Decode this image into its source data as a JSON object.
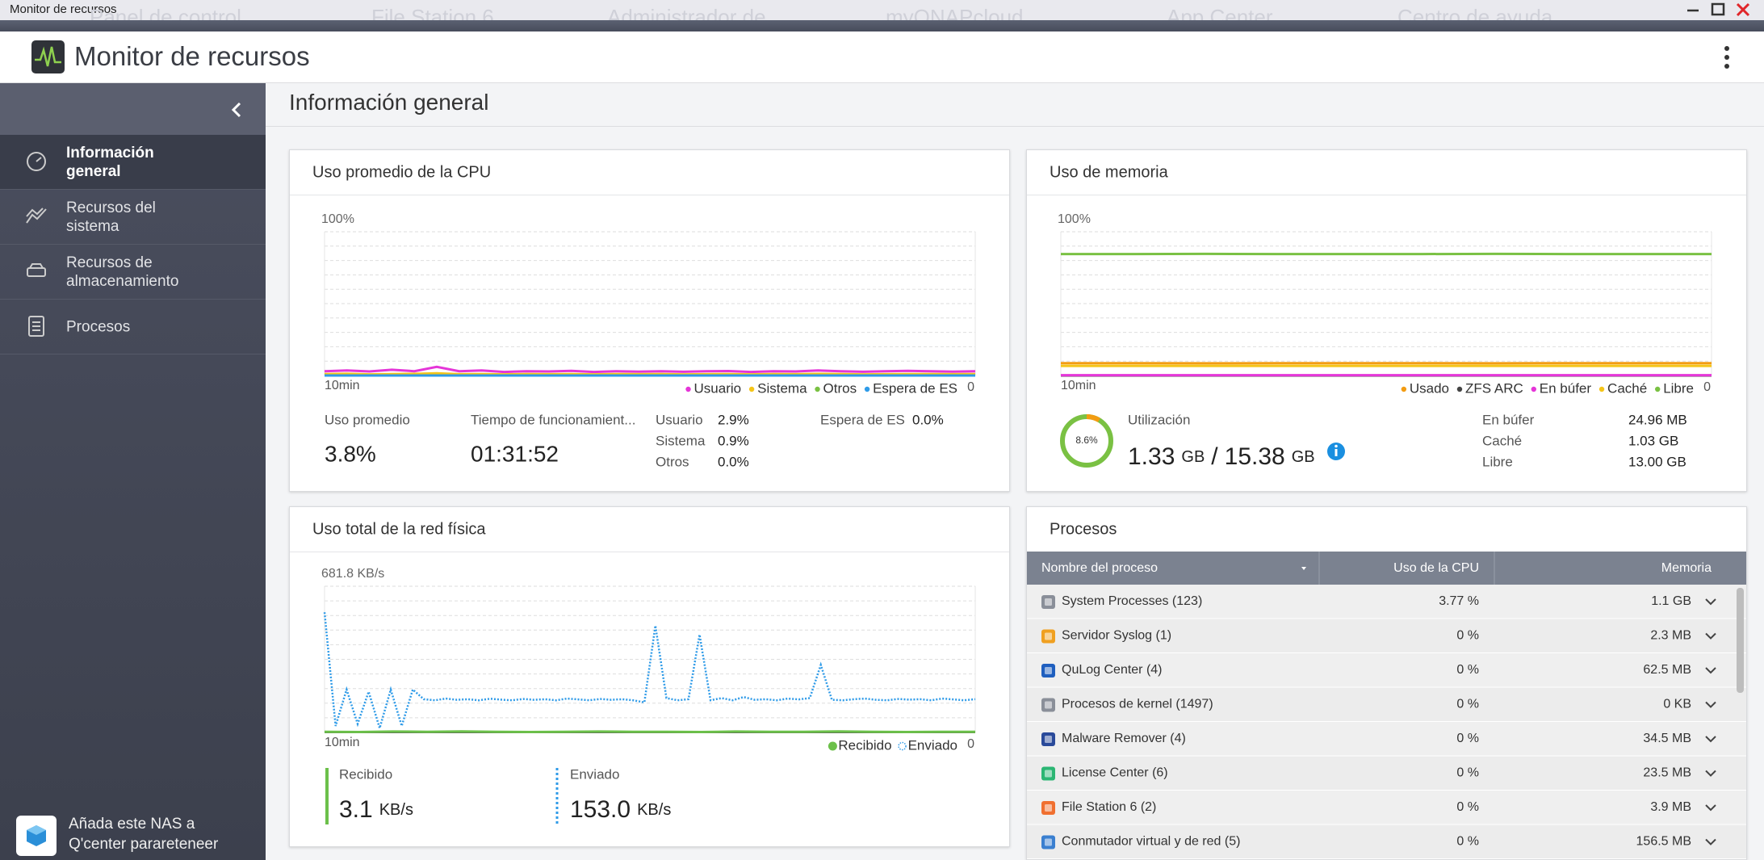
{
  "window": {
    "title": "Monitor de recursos",
    "background_tabs": [
      "Panel de control",
      "File Station 6",
      "Administrador de",
      "myQNAPcloud",
      "App Center",
      "Centro de ayuda"
    ]
  },
  "app": {
    "title": "Monitor de recursos"
  },
  "sidebar": {
    "items": [
      "Información general",
      "Recursos del sistema",
      "Recursos de almacenamiento",
      "Procesos"
    ],
    "active": 0,
    "footer": [
      "Añada este NAS a",
      "Q'center parareteneer"
    ]
  },
  "page": {
    "title": "Información general"
  },
  "cpu": {
    "title": "Uso promedio de la CPU",
    "chart": {
      "type": "line",
      "ylim": [
        0,
        100
      ],
      "yticks": [
        0,
        {
          "value": 100,
          "label": "100%"
        }
      ],
      "x_label": "10min",
      "series": [
        {
          "name": "Usuario",
          "color": "#e535d8",
          "values": [
            3,
            3.5,
            2.8,
            4,
            3,
            6,
            3,
            3.5,
            2.5,
            3,
            2.8,
            3.2,
            2.5,
            3,
            2.7,
            3,
            2.6,
            2.9,
            3.1,
            2.5,
            3,
            2.8,
            3.5,
            3,
            2.6,
            2.9,
            3.2,
            3,
            2.7,
            3
          ]
        },
        {
          "name": "Sistema",
          "color": "#f5c518",
          "values": [
            1,
            1.2,
            0.8,
            1,
            1.1,
            1.5,
            0.9,
            1,
            0.8,
            1,
            0.9,
            1,
            0.8,
            1,
            0.9,
            1,
            0.8,
            0.9,
            1,
            0.8,
            1,
            0.9,
            1.1,
            1,
            0.8,
            0.9,
            1,
            1,
            0.9,
            1
          ]
        },
        {
          "name": "Otros",
          "color": "#7ac143",
          "values": [
            0,
            0,
            0,
            0,
            0,
            0,
            0,
            0,
            0,
            0
          ]
        },
        {
          "name": "Espera de ES",
          "color": "#2f9be8",
          "values": [
            0,
            0,
            0,
            0,
            0,
            0,
            0,
            0,
            0,
            0
          ]
        }
      ]
    },
    "stats": {
      "average": {
        "label": "Uso promedio",
        "value": "3.8%"
      },
      "uptime": {
        "label": "Tiempo de funcionamient...",
        "value": "01:31:52"
      },
      "breakdown": [
        [
          "Usuario",
          "2.9%"
        ],
        [
          "Sistema",
          "0.9%"
        ],
        [
          "Otros",
          "0.0%"
        ]
      ],
      "io_wait": [
        "Espera de ES",
        "0.0%"
      ]
    }
  },
  "memory": {
    "title": "Uso de memoria",
    "chart": {
      "type": "line",
      "ylim": [
        0,
        100
      ],
      "yticks": [
        0,
        {
          "value": 100,
          "label": "100%"
        }
      ],
      "x_label": "10min",
      "series": [
        {
          "name": "Usado",
          "color": "#f39c12",
          "values": [
            8.6,
            8.6,
            8.5,
            8.6,
            8.6,
            8.6,
            8.5,
            8.6,
            8.6,
            8.6
          ]
        },
        {
          "name": "ZFS ARC",
          "color": "#444444",
          "values": [
            0,
            0,
            0,
            0,
            0,
            0,
            0,
            0,
            0,
            0
          ]
        },
        {
          "name": "En búfer",
          "color": "#e535d8",
          "values": [
            0.2,
            0.2,
            0.2,
            0.2,
            0.2,
            0.2,
            0.2,
            0.2,
            0.2,
            0.2
          ]
        },
        {
          "name": "Caché",
          "color": "#f5c518",
          "values": [
            6.7,
            6.7,
            6.7,
            6.7,
            6.7,
            6.7,
            6.7,
            6.7,
            6.7,
            6.7
          ]
        },
        {
          "name": "Libre",
          "color": "#7ac143",
          "values": [
            84.5,
            84.5,
            84.6,
            84.5,
            84.5,
            84.5,
            84.6,
            84.5,
            84.5,
            84.5
          ]
        }
      ]
    },
    "utilization": {
      "label": "Utilización",
      "ring": {
        "value": 8.6,
        "label": "8.6%"
      },
      "used": "1.33",
      "used_unit": "GB",
      "separator": "/",
      "total": "15.38",
      "total_unit": "GB"
    },
    "details": [
      [
        "En búfer",
        "24.96 MB"
      ],
      [
        "Caché",
        "1.03 GB"
      ],
      [
        "Libre",
        "13.00 GB"
      ]
    ]
  },
  "network": {
    "title": "Uso total de la red física",
    "chart": {
      "type": "line",
      "ylim": [
        0,
        681.8
      ],
      "yticks": [
        0,
        {
          "value": 681.8,
          "label": "681.8 KB/s"
        }
      ],
      "x_label": "10min",
      "series": [
        {
          "name": "Recibido",
          "color": "#6cc04a",
          "values": [
            3,
            2,
            4,
            3,
            5,
            3,
            2,
            3,
            4,
            3,
            3,
            2,
            4,
            3,
            3,
            5,
            3,
            2,
            3,
            3
          ]
        },
        {
          "name": "Enviado",
          "color": "#2f9be8",
          "style": "dotted",
          "values": [
            560,
            30,
            200,
            40,
            190,
            20,
            200,
            30,
            200,
            155,
            150,
            158,
            152,
            155,
            150,
            157,
            153,
            150,
            156,
            152,
            155,
            150,
            158,
            154,
            150,
            156,
            152,
            155,
            150,
            140,
            498,
            160,
            150,
            155,
            456,
            150,
            160,
            150,
            165,
            152,
            155,
            150,
            158,
            154,
            160,
            315,
            152,
            150,
            155,
            158,
            152,
            150,
            156,
            153,
            155,
            150,
            158,
            154,
            150,
            155
          ]
        }
      ]
    },
    "received": {
      "label": "Recibido",
      "value": "3.1",
      "unit": "KB/s"
    },
    "sent": {
      "label": "Enviado",
      "value": "153.0",
      "unit": "KB/s"
    }
  },
  "processes": {
    "title": "Procesos",
    "columns": [
      "Nombre del proceso",
      "Uso de la CPU",
      "Memoria"
    ],
    "rows": [
      {
        "name": "System Processes (123)",
        "cpu": "3.77 %",
        "memory": "1.1 GB",
        "color": "#8a8f99"
      },
      {
        "name": "Servidor Syslog (1)",
        "cpu": "0 %",
        "memory": "2.3 MB",
        "color": "#f0a020"
      },
      {
        "name": "QuLog Center (4)",
        "cpu": "0 %",
        "memory": "62.5 MB",
        "color": "#1f5fbf"
      },
      {
        "name": "Procesos de kernel (1497)",
        "cpu": "0 %",
        "memory": "0 KB",
        "color": "#8a8f99"
      },
      {
        "name": "Malware Remover (4)",
        "cpu": "0 %",
        "memory": "34.5 MB",
        "color": "#2a4a9a"
      },
      {
        "name": "License Center (6)",
        "cpu": "0 %",
        "memory": "23.5 MB",
        "color": "#2bb673"
      },
      {
        "name": "File Station 6 (2)",
        "cpu": "0 %",
        "memory": "3.9 MB",
        "color": "#f07030"
      },
      {
        "name": "Conmutador virtual y de red (5)",
        "cpu": "0 %",
        "memory": "156.5 MB",
        "color": "#3a7fd0"
      }
    ]
  }
}
